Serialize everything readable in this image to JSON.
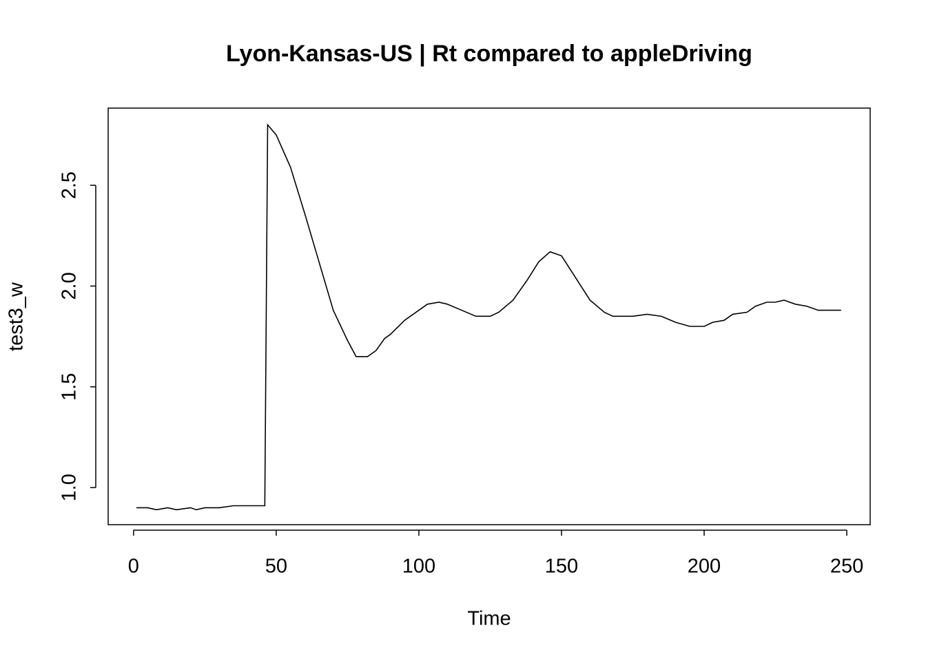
{
  "chart_data": {
    "type": "line",
    "title": "Lyon-Kansas-US | Rt compared to appleDriving",
    "xlabel": "Time",
    "ylabel": "test3_w",
    "x": [
      1,
      5,
      8,
      12,
      15,
      20,
      22,
      25,
      30,
      35,
      40,
      46,
      47,
      50,
      55,
      60,
      65,
      70,
      75,
      78,
      82,
      85,
      88,
      90,
      95,
      100,
      103,
      107,
      110,
      115,
      120,
      125,
      128,
      133,
      138,
      142,
      146,
      150,
      155,
      160,
      165,
      168,
      175,
      180,
      185,
      190,
      195,
      200,
      203,
      207,
      210,
      215,
      218,
      222,
      225,
      228,
      232,
      236,
      240,
      245,
      248
    ],
    "series": [
      {
        "name": "test3_w",
        "color": "#000000",
        "values": [
          0.9,
          0.9,
          0.89,
          0.9,
          0.89,
          0.9,
          0.89,
          0.9,
          0.9,
          0.91,
          0.91,
          0.91,
          2.8,
          2.75,
          2.59,
          2.36,
          2.12,
          1.88,
          1.73,
          1.65,
          1.65,
          1.68,
          1.74,
          1.76,
          1.83,
          1.88,
          1.91,
          1.92,
          1.91,
          1.88,
          1.85,
          1.85,
          1.87,
          1.93,
          2.03,
          2.12,
          2.17,
          2.15,
          2.04,
          1.93,
          1.87,
          1.85,
          1.85,
          1.86,
          1.85,
          1.82,
          1.8,
          1.8,
          1.82,
          1.83,
          1.86,
          1.87,
          1.9,
          1.92,
          1.92,
          1.93,
          1.91,
          1.9,
          1.88,
          1.88,
          1.88
        ]
      }
    ],
    "xlim": [
      -8.9,
      258.2
    ],
    "ylim": [
      0.816,
      2.883
    ],
    "xticks": [
      0,
      50,
      100,
      150,
      200,
      250
    ],
    "yticks": [
      {
        "value": 1,
        "label": "1.0"
      },
      1.5,
      {
        "value": 2,
        "label": "2.0"
      },
      2.5
    ]
  }
}
